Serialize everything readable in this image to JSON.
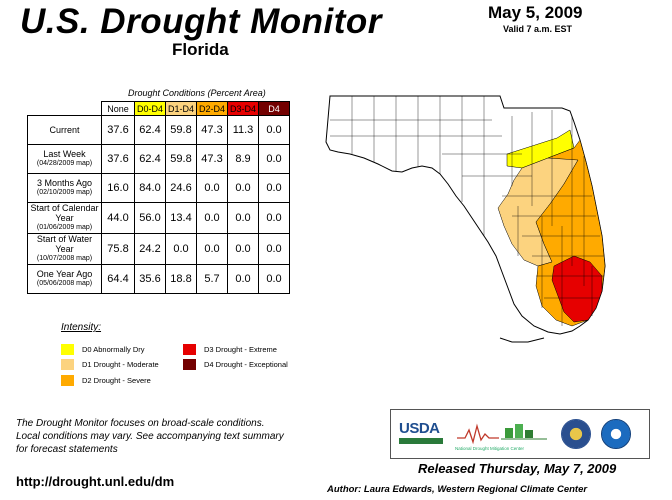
{
  "header": {
    "title": "U.S. Drought Monitor",
    "region": "Florida",
    "date": "May 5, 2009",
    "valid": "Valid 7 a.m. EST"
  },
  "table": {
    "caption": "Drought Conditions (Percent Area)",
    "columns": [
      "None",
      "D0-D4",
      "D1-D4",
      "D2-D4",
      "D3-D4",
      "D4"
    ],
    "column_colors": [
      "#ffffff",
      "#ffff00",
      "#fcd37f",
      "#ffaa00",
      "#e60000",
      "#730000"
    ],
    "column_text_colors": [
      "#000000",
      "#000000",
      "#000000",
      "#000000",
      "#000000",
      "#ffffff"
    ],
    "rows": [
      {
        "label": "Current",
        "sub": "",
        "values": [
          "37.6",
          "62.4",
          "59.8",
          "47.3",
          "11.3",
          "0.0"
        ]
      },
      {
        "label": "Last Week",
        "sub": "(04/28/2009 map)",
        "values": [
          "37.6",
          "62.4",
          "59.8",
          "47.3",
          "8.9",
          "0.0"
        ]
      },
      {
        "label": "3 Months Ago",
        "sub": "(02/10/2009 map)",
        "values": [
          "16.0",
          "84.0",
          "24.6",
          "0.0",
          "0.0",
          "0.0"
        ]
      },
      {
        "label": "Start of Calendar Year",
        "sub": "(01/06/2009 map)",
        "values": [
          "44.0",
          "56.0",
          "13.4",
          "0.0",
          "0.0",
          "0.0"
        ]
      },
      {
        "label": "Start of Water Year",
        "sub": "(10/07/2008 map)",
        "values": [
          "75.8",
          "24.2",
          "0.0",
          "0.0",
          "0.0",
          "0.0"
        ]
      },
      {
        "label": "One Year Ago",
        "sub": "(05/06/2008 map)",
        "values": [
          "64.4",
          "35.6",
          "18.8",
          "5.7",
          "0.0",
          "0.0"
        ]
      }
    ]
  },
  "legend": {
    "title": "Intensity:",
    "items": [
      {
        "label": "D0 Abnormally Dry",
        "color": "#ffff00"
      },
      {
        "label": "D1 Drought - Moderate",
        "color": "#fcd37f"
      },
      {
        "label": "D2 Drought - Severe",
        "color": "#ffaa00"
      },
      {
        "label": "D3 Drought - Extreme",
        "color": "#e60000"
      },
      {
        "label": "D4 Drought - Exceptional",
        "color": "#730000"
      }
    ]
  },
  "footer": {
    "note_lines": [
      "The Drought Monitor focuses on broad-scale conditions.",
      "Local conditions may vary. See accompanying text summary",
      "for forecast statements"
    ],
    "url": "http://drought.unl.edu/dm",
    "released": "Released Thursday, May 7, 2009",
    "author": "Author: Laura Edwards, Western Regional Climate Center"
  },
  "logos": {
    "usda": "USDA",
    "ndmc": "National Drought Mitigation Center"
  }
}
